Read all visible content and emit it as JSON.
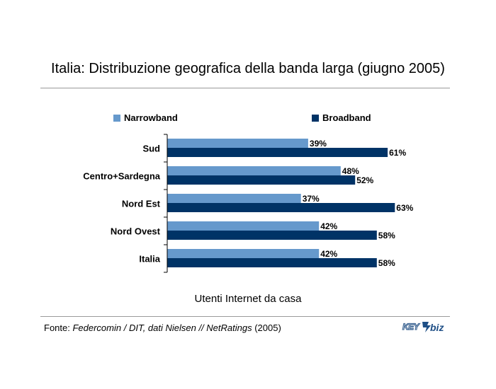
{
  "title": "Italia: Distribuzione geografica della banda larga (giugno 2005)",
  "xlabel": "Utenti Internet da casa",
  "source": {
    "prefix": "Fonte: ",
    "italic": "Federcomin / DIT, dati Nielsen // NetRatings",
    "suffix": " (2005)"
  },
  "logo": {
    "text": "KEY4biz",
    "icon": "key4biz-logo"
  },
  "colors": {
    "narrowband": "#6699CC",
    "broadband": "#003366",
    "rule": "#9A9A9A"
  },
  "chart_data": {
    "type": "bar",
    "orientation": "horizontal",
    "title": "Italia: Distribuzione geografica della banda larga (giugno 2005)",
    "xlabel": "Utenti Internet da casa",
    "categories": [
      "Sud",
      "Centro+Sardegna",
      "Nord Est",
      "Nord Ovest",
      "Italia"
    ],
    "series": [
      {
        "name": "Narrowband",
        "values": [
          39,
          48,
          37,
          42,
          42
        ],
        "labels": [
          "39%",
          "48%",
          "37%",
          "42%",
          "42%"
        ]
      },
      {
        "name": "Broadband",
        "values": [
          61,
          52,
          63,
          58,
          58
        ],
        "labels": [
          "61%",
          "52%",
          "63%",
          "58%",
          "58%"
        ]
      }
    ],
    "xlim": [
      0,
      100
    ],
    "unit": "%",
    "grid": false,
    "legend_position": "top"
  }
}
